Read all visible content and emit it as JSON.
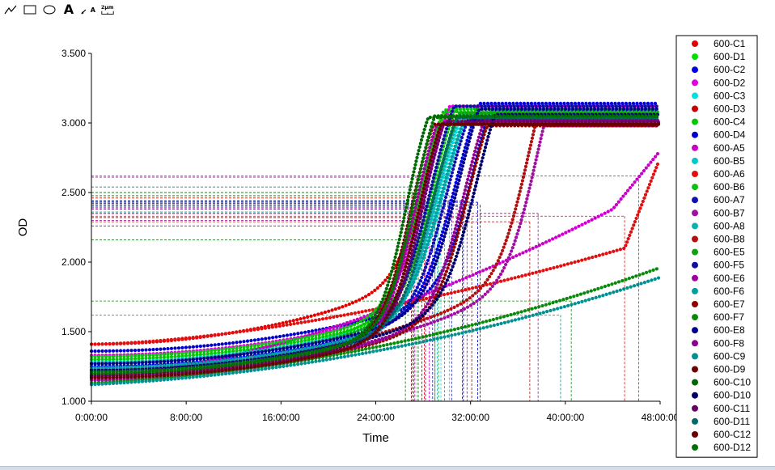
{
  "toolbar": {
    "tools": [
      {
        "name": "line-tool-icon",
        "glyph": ""
      },
      {
        "name": "rectangle-tool-icon",
        "glyph": ""
      },
      {
        "name": "ellipse-tool-icon",
        "glyph": ""
      },
      {
        "name": "text-tool-icon",
        "glyph": "A"
      },
      {
        "name": "arrow-text-tool-icon",
        "glyph": "A"
      },
      {
        "name": "scale-bar-tool-icon",
        "glyph": "2µm"
      }
    ]
  },
  "chart_data": {
    "type": "scatter",
    "xlabel": "Time",
    "ylabel": "OD",
    "xlim": [
      0,
      48
    ],
    "ylim": [
      1.0,
      3.5
    ],
    "x_unit": "hours",
    "xticks": [
      {
        "value": 0,
        "label": "0:00:00"
      },
      {
        "value": 8,
        "label": "8:00:00"
      },
      {
        "value": 16,
        "label": "16:00:00"
      },
      {
        "value": 24,
        "label": "24:00:00"
      },
      {
        "value": 32,
        "label": "32:00:00"
      },
      {
        "value": 40,
        "label": "40:00:00"
      },
      {
        "value": 48,
        "label": "48:00:00"
      }
    ],
    "yticks": [
      {
        "value": 1.0,
        "label": "1.000"
      },
      {
        "value": 1.5,
        "label": "1.500"
      },
      {
        "value": 2.0,
        "label": "2.000"
      },
      {
        "value": 2.5,
        "label": "2.500"
      },
      {
        "value": 3.0,
        "label": "3.000"
      },
      {
        "value": 3.5,
        "label": "3.500"
      }
    ],
    "grid": false,
    "legend_position": "right",
    "series": [
      {
        "name": "600-C1",
        "color": "#e00000",
        "y0": 1.41,
        "plateau": 3.0,
        "t_mid": 28.4,
        "steep": 0.75,
        "slope": 0.007,
        "marker_t": 28.1,
        "marker_od": 2.46
      },
      {
        "name": "600-D1",
        "color": "#00e000",
        "y0": 1.28,
        "plateau": 3.08,
        "t_mid": 27.9,
        "steep": 0.7,
        "slope": 0.005,
        "marker_t": 27.5,
        "marker_od": 2.5
      },
      {
        "name": "600-C2",
        "color": "#0000e0",
        "y0": 1.25,
        "plateau": 3.12,
        "t_mid": 30.8,
        "steep": 0.65,
        "slope": 0.005,
        "marker_t": 31.3,
        "marker_od": 2.4
      },
      {
        "name": "600-D2",
        "color": "#e000e0",
        "y0": 1.33,
        "plateau": 3.1,
        "t_mid": 28.3,
        "steep": 0.7,
        "slope": 0.005,
        "marker_t": 28.5,
        "marker_od": 2.61
      },
      {
        "name": "600-C3",
        "color": "#00e0e0",
        "y0": 1.22,
        "plateau": 3.05,
        "t_mid": 29.3,
        "steep": 0.65,
        "slope": 0.005,
        "marker_t": 29.5,
        "marker_od": 2.38
      },
      {
        "name": "600-D3",
        "color": "#c80000",
        "y0": 1.2,
        "plateau": 2.98,
        "t_mid": 27.5,
        "steep": 0.7,
        "slope": 0.005,
        "marker_t": 27.2,
        "marker_od": 2.35
      },
      {
        "name": "600-C4",
        "color": "#00c800",
        "y0": 1.3,
        "plateau": 3.08,
        "t_mid": 28.8,
        "steep": 0.7,
        "slope": 0.005,
        "marker_t": 29.0,
        "marker_od": 2.44
      },
      {
        "name": "600-D4",
        "color": "#0000c8",
        "y0": 1.36,
        "plateau": 3.06,
        "t_mid": 32.2,
        "steep": 0.75,
        "slope": 0.005,
        "marker_t": 32.6,
        "marker_od": 2.43
      },
      {
        "name": "600-A5",
        "color": "#c800c8",
        "y0": 1.18,
        "plateau": 2.98,
        "mode": "linear",
        "ramp_start": 44.0,
        "ramp_od": 2.38,
        "end_od": 2.8,
        "marker_t": 46.2,
        "marker_od": 2.62
      },
      {
        "name": "600-B5",
        "color": "#00c8c8",
        "y0": 1.28,
        "plateau": 3.04,
        "t_mid": 29.8,
        "steep": 0.65,
        "slope": 0.005,
        "marker_t": 30.2,
        "marker_od": 2.48
      },
      {
        "name": "600-A6",
        "color": "#e01010",
        "y0": 1.41,
        "plateau": 2.98,
        "mode": "linear",
        "ramp_start": 45.0,
        "ramp_od": 2.1,
        "end_od": 2.75,
        "marker_t": 45.0,
        "marker_od": 2.33
      },
      {
        "name": "600-B6",
        "color": "#10c010",
        "y0": 1.32,
        "plateau": 3.06,
        "t_mid": 27.8,
        "steep": 0.75,
        "slope": 0.005,
        "marker_t": 27.6,
        "marker_od": 2.47
      },
      {
        "name": "600-A7",
        "color": "#1010b0",
        "y0": 1.24,
        "plateau": 3.0,
        "t_mid": 30.0,
        "steep": 0.7,
        "slope": 0.005,
        "marker_t": 30.4,
        "marker_od": 2.42
      },
      {
        "name": "600-B7",
        "color": "#a010a0",
        "y0": 1.15,
        "plateau": 2.96,
        "t_mid": 37.6,
        "steep": 0.75,
        "slope": 0.006,
        "marker_t": 37.7,
        "marker_od": 2.35
      },
      {
        "name": "600-A8",
        "color": "#10b0b0",
        "y0": 1.2,
        "plateau": 3.02,
        "t_mid": 29.1,
        "steep": 0.7,
        "slope": 0.005,
        "marker_t": 29.2,
        "marker_od": 2.4
      },
      {
        "name": "600-B8",
        "color": "#b01010",
        "y0": 1.19,
        "plateau": 3.0,
        "t_mid": 36.9,
        "steep": 0.75,
        "slope": 0.006,
        "marker_t": 37.0,
        "marker_od": 2.29
      },
      {
        "name": "600-E5",
        "color": "#10a010",
        "y0": 1.27,
        "plateau": 3.05,
        "t_mid": 29.0,
        "steep": 0.65,
        "slope": 0.005,
        "marker_t": 29.3,
        "marker_od": 2.44
      },
      {
        "name": "600-F5",
        "color": "#1010a0",
        "y0": 1.23,
        "plateau": 3.1,
        "t_mid": 28.6,
        "steep": 0.7,
        "slope": 0.005,
        "marker_t": 28.8,
        "marker_od": 2.43
      },
      {
        "name": "600-E6",
        "color": "#a000a0",
        "y0": 1.16,
        "plateau": 2.97,
        "t_mid": 27.3,
        "steep": 0.8,
        "slope": 0.005,
        "marker_t": 27.3,
        "marker_od": 2.3
      },
      {
        "name": "600-F6",
        "color": "#00a0a0",
        "y0": 1.24,
        "plateau": 3.03,
        "t_mid": 29.6,
        "steep": 0.65,
        "slope": 0.005,
        "marker_t": 29.8,
        "marker_od": 2.36
      },
      {
        "name": "600-E7",
        "color": "#900000",
        "y0": 1.17,
        "plateau": 2.96,
        "t_mid": 31.8,
        "steep": 0.7,
        "slope": 0.005,
        "marker_t": 32.1,
        "marker_od": 2.32
      },
      {
        "name": "600-F7",
        "color": "#0a8a0a",
        "y0": 1.13,
        "plateau": 2.1,
        "mode": "linear_slow",
        "ramp_start": 10.0,
        "ramp_od": 1.3,
        "end_od": 1.96,
        "marker_t": 40.5,
        "marker_od": 1.72
      },
      {
        "name": "600-E8",
        "color": "#000090",
        "y0": 1.27,
        "plateau": 3.08,
        "t_mid": 31.0,
        "steep": 0.7,
        "slope": 0.005,
        "marker_t": 31.4,
        "marker_od": 2.44
      },
      {
        "name": "600-F8",
        "color": "#900090",
        "y0": 1.18,
        "plateau": 3.0,
        "t_mid": 31.5,
        "steep": 0.7,
        "slope": 0.005,
        "marker_t": 31.7,
        "marker_od": 2.38
      },
      {
        "name": "600-C9",
        "color": "#009090",
        "y0": 1.12,
        "plateau": 2.0,
        "mode": "linear_slow2",
        "ramp_start": 10.0,
        "ramp_od": 1.28,
        "end_od": 1.89,
        "marker_t": 39.6,
        "marker_od": 1.62
      },
      {
        "name": "600-D9",
        "color": "#700000",
        "y0": 1.19,
        "plateau": 2.97,
        "t_mid": 27.0,
        "steep": 0.8,
        "slope": 0.005,
        "marker_t": 27.0,
        "marker_od": 2.26
      },
      {
        "name": "600-C10",
        "color": "#006800",
        "y0": 1.2,
        "plateau": 3.02,
        "t_mid": 26.6,
        "steep": 0.85,
        "slope": 0.005,
        "marker_t": 26.5,
        "marker_od": 2.16
      },
      {
        "name": "600-D10",
        "color": "#000068",
        "y0": 1.22,
        "plateau": 3.04,
        "t_mid": 32.5,
        "steep": 0.7,
        "slope": 0.005,
        "marker_t": 32.8,
        "marker_od": 2.41
      },
      {
        "name": "600-C11",
        "color": "#680068",
        "y0": 1.18,
        "plateau": 2.99,
        "t_mid": 28.0,
        "steep": 0.8,
        "slope": 0.005,
        "marker_t": 28.2,
        "marker_od": 2.39
      },
      {
        "name": "600-D11",
        "color": "#006868",
        "y0": 1.21,
        "plateau": 3.02,
        "t_mid": 28.9,
        "steep": 0.7,
        "slope": 0.005,
        "marker_t": 29.0,
        "marker_od": 2.54
      },
      {
        "name": "600-C12",
        "color": "#680000",
        "y0": 1.17,
        "plateau": 2.97,
        "t_mid": 27.7,
        "steep": 0.8,
        "slope": 0.005,
        "marker_t": 27.9,
        "marker_od": 2.42
      },
      {
        "name": "600-D12",
        "color": "#007000",
        "y0": 1.21,
        "plateau": 3.03,
        "t_mid": 27.2,
        "steep": 0.85,
        "slope": 0.005,
        "marker_t": 27.1,
        "marker_od": 2.5
      }
    ]
  }
}
